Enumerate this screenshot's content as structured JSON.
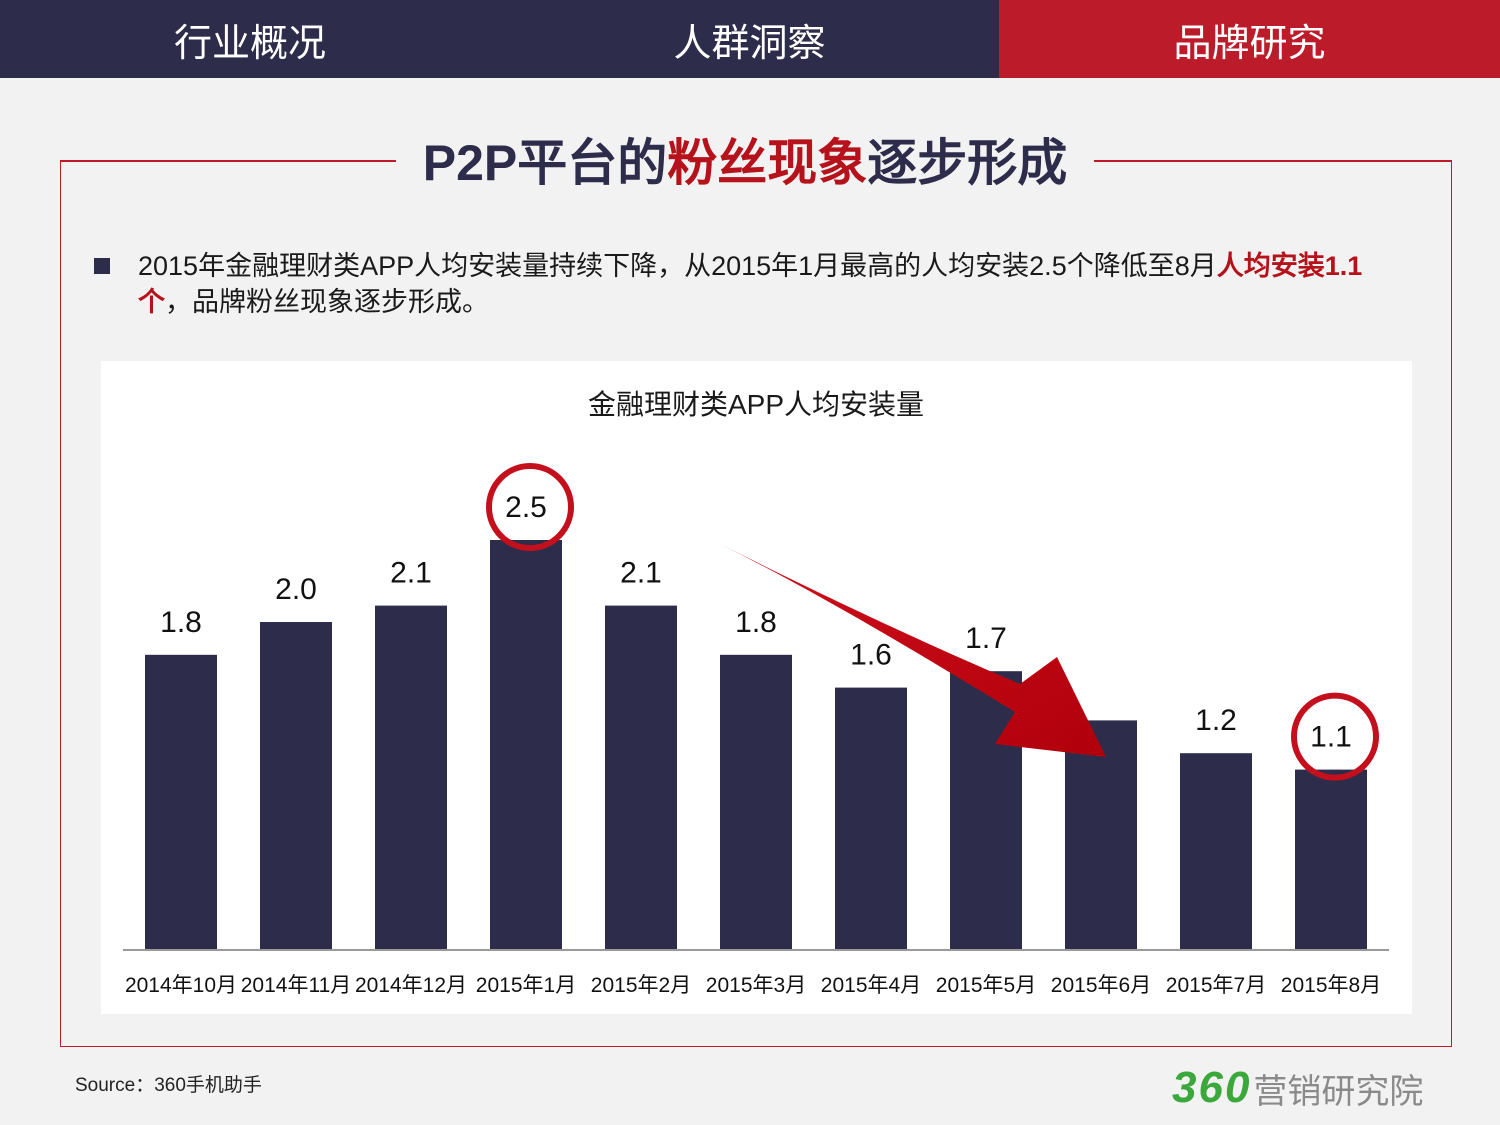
{
  "nav": {
    "tabs": [
      {
        "label": "行业概况",
        "active": false
      },
      {
        "label": "人群洞察",
        "active": false
      },
      {
        "label": "品牌研究",
        "active": true
      }
    ]
  },
  "page": {
    "title_part1": "P2P平台的",
    "title_highlight": "粉丝现象",
    "title_part2": "逐步形成",
    "bullet_part1": "2015年金融理财类APP人均安装量持续下降，从2015年1月最高的人均安装2.5个降低至8月",
    "bullet_highlight": "人均安装1.1个",
    "bullet_part2": "，品牌粉丝现象逐步形成。",
    "source": "Source：360手机助手",
    "logo_number": "360",
    "logo_text": "营销研究院"
  },
  "colors": {
    "navy": "#2d2d4b",
    "red": "#bc1b29",
    "logo_green": "#3aa83a"
  },
  "chart_data": {
    "type": "bar",
    "title": "金融理财类APP人均安装量",
    "categories": [
      "2014年10月",
      "2014年11月",
      "2014年12月",
      "2015年1月",
      "2015年2月",
      "2015年3月",
      "2015年4月",
      "2015年5月",
      "2015年6月",
      "2015年7月",
      "2015年8月"
    ],
    "values": [
      1.8,
      2.0,
      2.1,
      2.5,
      2.1,
      1.8,
      1.6,
      1.7,
      1.4,
      1.2,
      1.1
    ],
    "data_labels": [
      "1.8",
      "2.0",
      "2.1",
      "2.5",
      "2.1",
      "1.8",
      "1.6",
      "1.7",
      "",
      "1.2",
      "1.1"
    ],
    "highlighted_categories": [
      "2015年1月",
      "2015年8月"
    ],
    "trend_arrow": {
      "from": "2015年3月",
      "to": "2015年6月"
    },
    "bar_color": "#2d2d4b",
    "xlabel": "",
    "ylabel": "",
    "grid": false,
    "legend": "none"
  }
}
